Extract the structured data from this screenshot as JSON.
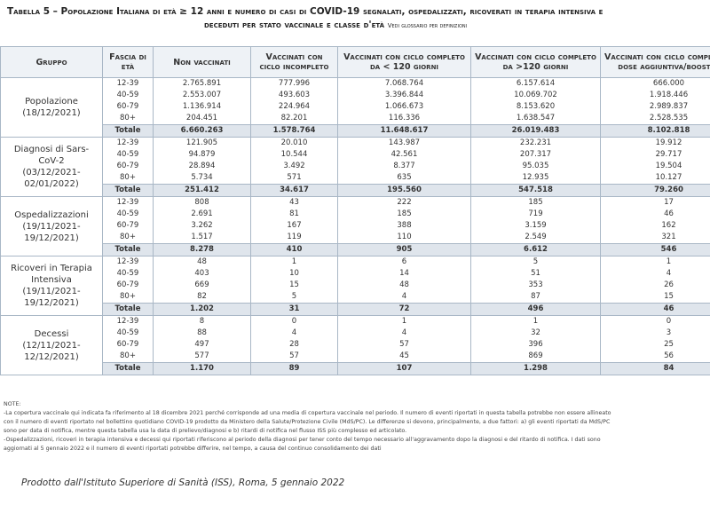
{
  "title": {
    "lines": [
      "Tabella 5 – Popolazione Italiana di età ≥ 12 anni e numero di casi di COVID-19 segnalati, ospedalizzati, ricoverati in terapia intensiva e",
      "deceduti per stato vaccinale e classe d'età"
    ],
    "note": "Vedi glossario per definizioni"
  },
  "table": {
    "columns": [
      "Gruppo",
      "Fascia di età",
      "Non vaccinati",
      "Vaccinati con ciclo incompleto",
      "Vaccinati con ciclo completo da < 120 giorni",
      "Vaccinati con ciclo completo da >120 giorni",
      "Vaccinati con ciclo completo e dose aggiuntiva/booster"
    ],
    "groups": [
      {
        "label": "Popolazione",
        "period": "(18/12/2021)",
        "rows": [
          {
            "age": "12-39",
            "values": [
              "2.765.891",
              "777.996",
              "7.068.764",
              "6.157.614",
              "666.000"
            ]
          },
          {
            "age": "40-59",
            "values": [
              "2.553.007",
              "493.603",
              "3.396.844",
              "10.069.702",
              "1.918.446"
            ]
          },
          {
            "age": "60-79",
            "values": [
              "1.136.914",
              "224.964",
              "1.066.673",
              "8.153.620",
              "2.989.837"
            ]
          },
          {
            "age": "80+",
            "values": [
              "204.451",
              "82.201",
              "116.336",
              "1.638.547",
              "2.528.535"
            ]
          }
        ],
        "total": {
          "label": "Totale",
          "values": [
            "6.660.263",
            "1.578.764",
            "11.648.617",
            "26.019.483",
            "8.102.818"
          ]
        }
      },
      {
        "label": "Diagnosi di Sars-CoV-2",
        "period": "(03/12/2021-02/01/2022)",
        "rows": [
          {
            "age": "12-39",
            "values": [
              "121.905",
              "20.010",
              "143.987",
              "232.231",
              "19.912"
            ]
          },
          {
            "age": "40-59",
            "values": [
              "94.879",
              "10.544",
              "42.561",
              "207.317",
              "29.717"
            ]
          },
          {
            "age": "60-79",
            "values": [
              "28.894",
              "3.492",
              "8.377",
              "95.035",
              "19.504"
            ]
          },
          {
            "age": "80+",
            "values": [
              "5.734",
              "571",
              "635",
              "12.935",
              "10.127"
            ]
          }
        ],
        "total": {
          "label": "Totale",
          "values": [
            "251.412",
            "34.617",
            "195.560",
            "547.518",
            "79.260"
          ]
        }
      },
      {
        "label": "Ospedalizzazioni",
        "period": "(19/11/2021-19/12/2021)",
        "rows": [
          {
            "age": "12-39",
            "values": [
              "808",
              "43",
              "222",
              "185",
              "17"
            ]
          },
          {
            "age": "40-59",
            "values": [
              "2.691",
              "81",
              "185",
              "719",
              "46"
            ]
          },
          {
            "age": "60-79",
            "values": [
              "3.262",
              "167",
              "388",
              "3.159",
              "162"
            ]
          },
          {
            "age": "80+",
            "values": [
              "1.517",
              "119",
              "110",
              "2.549",
              "321"
            ]
          }
        ],
        "total": {
          "label": "Totale",
          "values": [
            "8.278",
            "410",
            "905",
            "6.612",
            "546"
          ]
        }
      },
      {
        "label": "Ricoveri in Terapia Intensiva",
        "period": "(19/11/2021-19/12/2021)",
        "rows": [
          {
            "age": "12-39",
            "values": [
              "48",
              "1",
              "6",
              "5",
              "1"
            ]
          },
          {
            "age": "40-59",
            "values": [
              "403",
              "10",
              "14",
              "51",
              "4"
            ]
          },
          {
            "age": "60-79",
            "values": [
              "669",
              "15",
              "48",
              "353",
              "26"
            ]
          },
          {
            "age": "80+",
            "values": [
              "82",
              "5",
              "4",
              "87",
              "15"
            ]
          }
        ],
        "total": {
          "label": "Totale",
          "values": [
            "1.202",
            "31",
            "72",
            "496",
            "46"
          ]
        }
      },
      {
        "label": "Decessi",
        "period": "(12/11/2021-12/12/2021)",
        "rows": [
          {
            "age": "12-39",
            "values": [
              "8",
              "0",
              "1",
              "1",
              "0"
            ]
          },
          {
            "age": "40-59",
            "values": [
              "88",
              "4",
              "4",
              "32",
              "3"
            ]
          },
          {
            "age": "60-79",
            "values": [
              "497",
              "28",
              "57",
              "396",
              "25"
            ]
          },
          {
            "age": "80+",
            "values": [
              "577",
              "57",
              "45",
              "869",
              "56"
            ]
          }
        ],
        "total": {
          "label": "Totale",
          "values": [
            "1.170",
            "89",
            "107",
            "1.298",
            "84"
          ]
        }
      }
    ]
  },
  "notes": {
    "heading": "NOTE:",
    "lines": [
      "-La copertura vaccinale qui indicata fa riferimento al 18 dicembre 2021 perché corrisponde ad una media di copertura vaccinale nel periodo. Il numero di eventi riportati in questa tabella potrebbe non essere allineato",
      "con il numero di eventi riportato nel bollettino quotidiano COVID-19 prodotto da Ministero della Salute/Protezione Civile (MdS/PC). Le differenze si devono, principalmente, a due fattori: a) gli eventi riportati da MdS/PC",
      "sono per data di notifica, mentre questa tabella usa la data di prelievo/diagnosi e b) ritardi di notifica nel flusso ISS più complesso ed articolato.",
      "-Ospedalizzazioni, ricoveri in terapia intensiva e decessi qui riportati riferiscono al periodo della diagnosi per tener conto del tempo necessario all'aggravamento dopo la diagnosi e del ritardo di notifica. I dati sono",
      "aggiornati al 5 gennaio 2022 e il numero di eventi riportati potrebbe differire, nel tempo, a causa del continuo consolidamento dei dati"
    ]
  },
  "footer": "Prodotto dall'Istituto Superiore di Sanità (ISS), Roma, 5 gennaio 2022"
}
